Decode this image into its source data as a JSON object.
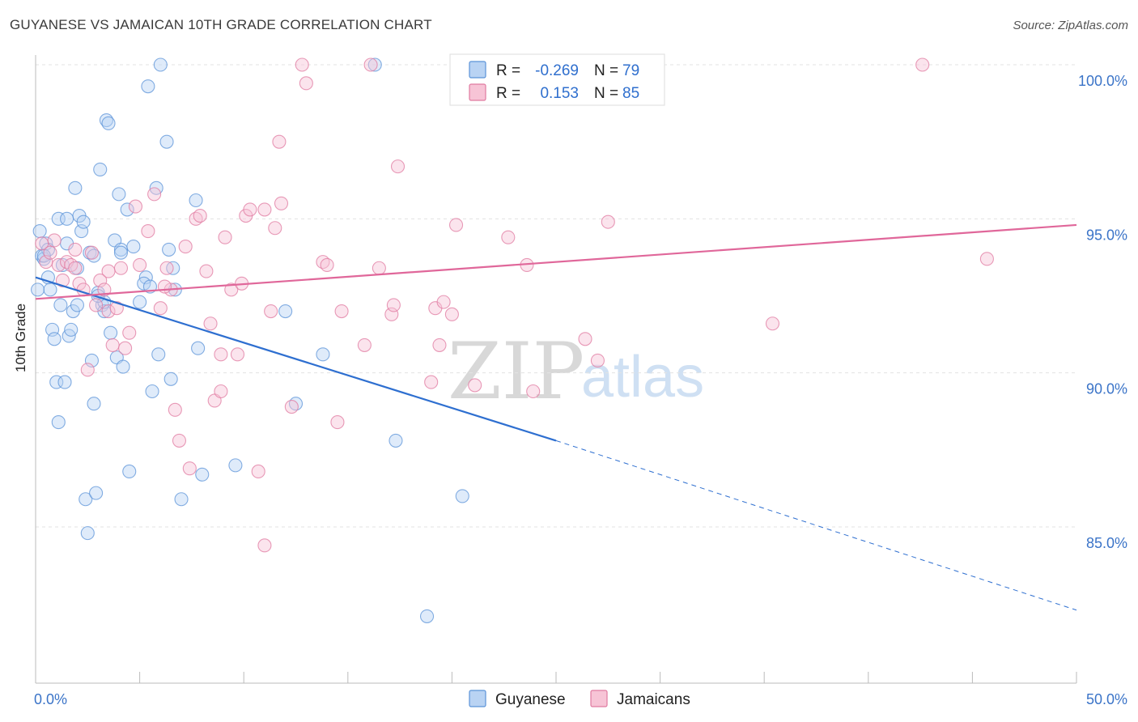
{
  "title": "GUYANESE VS JAMAICAN 10TH GRADE CORRELATION CHART",
  "source": "Source: ZipAtlas.com",
  "watermark": {
    "part1": "ZIP",
    "part2": "atlas"
  },
  "legend": {
    "r_label": "R =",
    "n_label": "N =",
    "rows": [
      {
        "name": "Guyanese",
        "r": "-0.269",
        "n": "79",
        "color": "#5b93d8",
        "fill": "#b9d3f3"
      },
      {
        "name": "Jamaicans",
        "r": "0.153",
        "n": "85",
        "color": "#e07aa0",
        "fill": "#f7c4d6"
      }
    ]
  },
  "chart_data": {
    "type": "scatter",
    "xlabel": "",
    "ylabel": "10th Grade",
    "xlim": [
      0,
      50
    ],
    "ylim": [
      80.5,
      101
    ],
    "x_ticks": [
      {
        "value": 0,
        "label": "0.0%"
      },
      {
        "value": 50,
        "label": "50.0%"
      }
    ],
    "x_minor_ticks": [
      5,
      10,
      15,
      20,
      25,
      30,
      35,
      40,
      45
    ],
    "y_ticks": [
      {
        "value": 85,
        "label": "85.0%"
      },
      {
        "value": 90,
        "label": "90.0%"
      },
      {
        "value": 95,
        "label": "95.0%"
      },
      {
        "value": 100,
        "label": "100.0%"
      }
    ],
    "grid": true,
    "legend_position": "top-center",
    "series": [
      {
        "name": "Guyanese",
        "color": "#5b93d8",
        "fill": "#b9d3f3",
        "trend": {
          "x0": 0,
          "y0": 93.1,
          "x1": 25,
          "y1": 87.8,
          "dashed_to": 50,
          "dashed_y": 82.3
        },
        "points": [
          [
            0.1,
            92.7
          ],
          [
            0.2,
            94.6
          ],
          [
            0.3,
            93.8
          ],
          [
            0.4,
            93.7
          ],
          [
            0.5,
            94.2
          ],
          [
            0.6,
            93.1
          ],
          [
            0.7,
            92.7
          ],
          [
            0.8,
            91.4
          ],
          [
            0.9,
            91.1
          ],
          [
            1.0,
            89.7
          ],
          [
            1.1,
            88.4
          ],
          [
            1.2,
            92.2
          ],
          [
            1.3,
            93.5
          ],
          [
            1.4,
            89.7
          ],
          [
            1.5,
            94.2
          ],
          [
            1.6,
            91.2
          ],
          [
            1.7,
            91.4
          ],
          [
            1.8,
            92.0
          ],
          [
            1.9,
            96.0
          ],
          [
            2.0,
            92.2
          ],
          [
            2.1,
            95.1
          ],
          [
            2.2,
            94.6
          ],
          [
            2.3,
            94.9
          ],
          [
            2.4,
            85.9
          ],
          [
            2.5,
            84.8
          ],
          [
            2.6,
            93.9
          ],
          [
            2.7,
            90.4
          ],
          [
            2.8,
            89.0
          ],
          [
            2.9,
            86.1
          ],
          [
            3.0,
            92.6
          ],
          [
            3.1,
            96.6
          ],
          [
            3.2,
            92.2
          ],
          [
            3.3,
            92.0
          ],
          [
            3.4,
            98.2
          ],
          [
            3.5,
            98.1
          ],
          [
            3.6,
            91.3
          ],
          [
            3.8,
            94.3
          ],
          [
            3.9,
            90.5
          ],
          [
            4.0,
            95.8
          ],
          [
            4.1,
            94.0
          ],
          [
            4.2,
            90.2
          ],
          [
            4.4,
            95.3
          ],
          [
            4.5,
            86.8
          ],
          [
            4.7,
            94.1
          ],
          [
            5.0,
            92.3
          ],
          [
            5.3,
            93.1
          ],
          [
            5.4,
            99.3
          ],
          [
            5.6,
            89.4
          ],
          [
            5.8,
            96.0
          ],
          [
            5.9,
            90.6
          ],
          [
            6.0,
            100.0
          ],
          [
            6.3,
            97.5
          ],
          [
            6.5,
            89.8
          ],
          [
            6.6,
            93.4
          ],
          [
            7.0,
            85.9
          ],
          [
            7.7,
            95.6
          ],
          [
            7.8,
            90.8
          ],
          [
            8.0,
            86.7
          ],
          [
            9.6,
            87.0
          ],
          [
            12.0,
            92.0
          ],
          [
            12.5,
            89.0
          ],
          [
            13.8,
            90.6
          ],
          [
            16.3,
            100.0
          ],
          [
            17.3,
            87.8
          ],
          [
            18.8,
            82.1
          ],
          [
            20.5,
            86.0
          ],
          [
            0.6,
            94.0
          ],
          [
            1.1,
            95.0
          ],
          [
            2.8,
            93.8
          ],
          [
            3.3,
            92.3
          ],
          [
            4.1,
            93.9
          ],
          [
            5.2,
            92.9
          ],
          [
            6.4,
            94.0
          ],
          [
            1.5,
            95.0
          ],
          [
            0.4,
            93.8
          ],
          [
            2.0,
            93.4
          ],
          [
            6.7,
            92.7
          ],
          [
            3.0,
            92.5
          ],
          [
            5.5,
            92.8
          ]
        ]
      },
      {
        "name": "Jamaicans",
        "color": "#e07aa0",
        "fill": "#f7c4d6",
        "trend": {
          "x0": 0,
          "y0": 92.4,
          "x1": 50,
          "y1": 94.8
        },
        "points": [
          [
            0.3,
            94.2
          ],
          [
            0.5,
            93.6
          ],
          [
            0.7,
            93.9
          ],
          [
            0.9,
            94.3
          ],
          [
            1.1,
            93.5
          ],
          [
            1.3,
            93.0
          ],
          [
            1.5,
            93.6
          ],
          [
            1.7,
            93.5
          ],
          [
            1.9,
            94.0
          ],
          [
            2.1,
            92.9
          ],
          [
            2.3,
            92.7
          ],
          [
            2.5,
            90.1
          ],
          [
            2.7,
            93.9
          ],
          [
            2.9,
            92.2
          ],
          [
            3.1,
            93.0
          ],
          [
            3.3,
            92.7
          ],
          [
            3.5,
            92.0
          ],
          [
            3.7,
            90.9
          ],
          [
            3.9,
            92.1
          ],
          [
            4.1,
            93.4
          ],
          [
            4.3,
            90.8
          ],
          [
            4.5,
            91.3
          ],
          [
            4.8,
            95.4
          ],
          [
            5.0,
            93.5
          ],
          [
            5.4,
            94.6
          ],
          [
            5.7,
            95.8
          ],
          [
            6.0,
            92.1
          ],
          [
            6.3,
            93.4
          ],
          [
            6.5,
            92.7
          ],
          [
            6.7,
            88.8
          ],
          [
            6.9,
            87.8
          ],
          [
            7.2,
            94.1
          ],
          [
            7.4,
            86.9
          ],
          [
            7.7,
            95.0
          ],
          [
            7.9,
            95.1
          ],
          [
            8.2,
            93.3
          ],
          [
            8.4,
            91.6
          ],
          [
            8.6,
            89.1
          ],
          [
            8.9,
            89.4
          ],
          [
            9.1,
            94.4
          ],
          [
            9.4,
            92.7
          ],
          [
            9.7,
            90.6
          ],
          [
            9.9,
            92.9
          ],
          [
            10.1,
            95.1
          ],
          [
            10.3,
            95.3
          ],
          [
            10.7,
            86.8
          ],
          [
            11.0,
            95.3
          ],
          [
            11.3,
            92.0
          ],
          [
            11.5,
            94.7
          ],
          [
            11.7,
            97.5
          ],
          [
            11.8,
            95.5
          ],
          [
            12.3,
            88.9
          ],
          [
            12.8,
            100.0
          ],
          [
            13.0,
            99.4
          ],
          [
            13.8,
            93.6
          ],
          [
            14.0,
            93.5
          ],
          [
            14.5,
            88.4
          ],
          [
            14.7,
            92.0
          ],
          [
            15.8,
            90.9
          ],
          [
            16.1,
            100.0
          ],
          [
            16.5,
            93.4
          ],
          [
            17.1,
            91.9
          ],
          [
            17.2,
            92.2
          ],
          [
            17.4,
            96.7
          ],
          [
            19.0,
            89.7
          ],
          [
            19.2,
            92.1
          ],
          [
            19.4,
            90.9
          ],
          [
            19.6,
            92.3
          ],
          [
            20.0,
            91.9
          ],
          [
            20.2,
            94.8
          ],
          [
            21.1,
            89.6
          ],
          [
            22.7,
            94.4
          ],
          [
            23.6,
            93.5
          ],
          [
            23.9,
            89.4
          ],
          [
            26.4,
            91.1
          ],
          [
            27.0,
            90.4
          ],
          [
            27.5,
            94.9
          ],
          [
            35.4,
            91.6
          ],
          [
            42.6,
            100.0
          ],
          [
            45.7,
            93.7
          ],
          [
            11.0,
            84.4
          ],
          [
            8.9,
            90.6
          ],
          [
            3.5,
            93.3
          ],
          [
            6.2,
            92.8
          ],
          [
            1.9,
            93.4
          ]
        ]
      }
    ]
  }
}
